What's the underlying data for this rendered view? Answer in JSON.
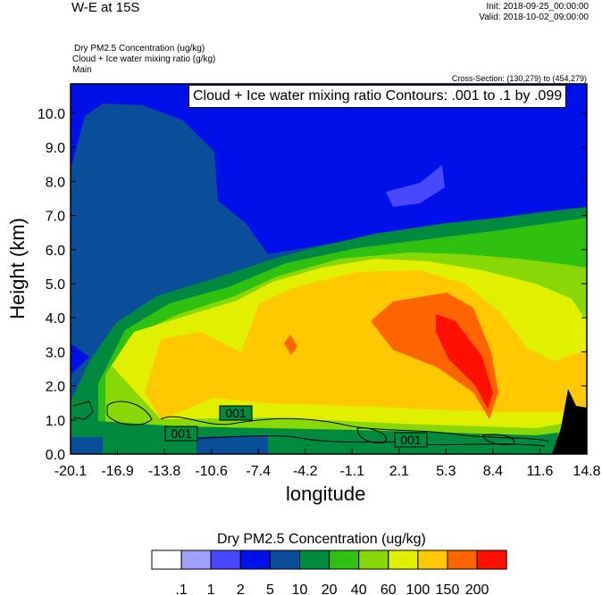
{
  "header": {
    "title": "W-E at 15S",
    "init": "Init: 2018-09-25_00:00:00",
    "valid": "Valid: 2018-10-02_09:00:00",
    "field_lines": [
      "Dry PM2.5 Concentration   (ug/kg)",
      "Cloud + Ice water mixing ratio   (g/kg)",
      "Main"
    ],
    "cross_section": "Cross-Section: (130,279) to (454,279)"
  },
  "chart_data": {
    "type": "contour-filled cross-section",
    "contour_annotation": "Cloud + Ice water mixing ratio Contours: .001 to .1 by .099",
    "contour_labels": [
      "001",
      "001",
      "001"
    ],
    "xlabel": "longitude",
    "ylabel": "Height (km)",
    "xlim": [
      -20.1,
      14.8
    ],
    "ylim": [
      0,
      10.5
    ],
    "x_ticks": [
      "-20.1",
      "-16.9",
      "-13.8",
      "-10.6",
      "-7.4",
      "-4.2",
      "-1.1",
      "2.1",
      "5.3",
      "8.4",
      "11.6",
      "14.8"
    ],
    "y_ticks": [
      "0.0",
      "1.0",
      "2.0",
      "3.0",
      "4.0",
      "5.0",
      "6.0",
      "7.0",
      "8.0",
      "9.0",
      "10.0"
    ],
    "y_tick_values": [
      0,
      1,
      2,
      3,
      4,
      5,
      6,
      7,
      8,
      9,
      10
    ],
    "colorbar": {
      "title": "Dry PM2.5 Concentration  (ug/kg)",
      "levels": [
        ".1",
        "1",
        "2",
        "5",
        "10",
        "20",
        "40",
        "60",
        "100",
        "150",
        "200"
      ],
      "colors": [
        "#ffffff",
        "#a0a0ff",
        "#4848ff",
        "#0010e8",
        "#0a4e9a",
        "#008a40",
        "#30c010",
        "#88d808",
        "#e0f000",
        "#ffc800",
        "#ff6400",
        "#ff1000"
      ]
    },
    "terrain_color": "#000000"
  }
}
